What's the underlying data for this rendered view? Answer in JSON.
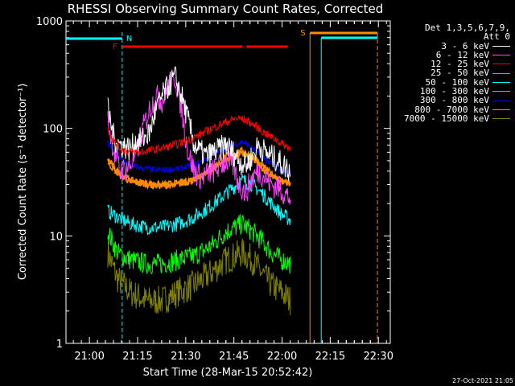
{
  "chart_data": {
    "type": "line",
    "title": "RHESSI Observing Summary Count Rates, Corrected",
    "xlabel": "Start Time (28-Mar-15 20:52:42)",
    "ylabel": "Corrected Count Rate (s⁻¹ detector⁻¹)",
    "x_ticks": [
      "21:00",
      "21:15",
      "21:30",
      "21:45",
      "22:00",
      "22:15",
      "22:30"
    ],
    "x_tick_minutes": [
      7.3,
      22.3,
      37.3,
      52.3,
      67.3,
      82.3,
      97.3
    ],
    "xlim": [
      0,
      101
    ],
    "y_scale": "log",
    "y_ticks": [
      "1",
      "10",
      "100",
      "1000"
    ],
    "y_tick_values": [
      1,
      10,
      100,
      1000
    ],
    "ylim": [
      1,
      1000
    ],
    "legend_header": [
      "Det 1,3,5,6,7,9,",
      "Att 0"
    ],
    "legend_placement": "right",
    "series": [
      {
        "name": "3 - 6 keV",
        "color": "#ffffff",
        "x": [
          13,
          15,
          17,
          20,
          22,
          24,
          26,
          28,
          30,
          32,
          34,
          36,
          38,
          40,
          42,
          44,
          46,
          48,
          50,
          52,
          54,
          56,
          58,
          60,
          62,
          64,
          66,
          68,
          70
        ],
        "y": [
          150,
          80,
          70,
          65,
          75,
          80,
          90,
          150,
          200,
          250,
          300,
          200,
          120,
          70,
          60,
          55,
          60,
          65,
          70,
          60,
          50,
          45,
          55,
          70,
          60,
          55,
          50,
          45,
          40
        ]
      },
      {
        "name": "6 - 12 keV",
        "color": "#ff40ff",
        "x": [
          13,
          15,
          17,
          20,
          22,
          24,
          26,
          28,
          30,
          32,
          34,
          36,
          38,
          40,
          42,
          44,
          46,
          48,
          50,
          52,
          54,
          56,
          58,
          60,
          62,
          64,
          66,
          68,
          70
        ],
        "y": [
          120,
          60,
          40,
          45,
          60,
          100,
          150,
          200,
          180,
          250,
          300,
          150,
          60,
          40,
          35,
          38,
          40,
          45,
          50,
          45,
          30,
          25,
          35,
          40,
          35,
          30,
          28,
          25,
          22
        ]
      },
      {
        "name": "12 - 25 keV",
        "color": "#ff0000",
        "x": [
          13,
          15,
          17,
          20,
          23,
          26,
          29,
          32,
          35,
          38,
          41,
          44,
          47,
          50,
          53,
          56,
          59,
          62,
          65,
          68,
          70
        ],
        "y": [
          100,
          75,
          65,
          60,
          60,
          62,
          65,
          68,
          72,
          78,
          85,
          95,
          105,
          115,
          125,
          120,
          105,
          90,
          80,
          70,
          65
        ]
      },
      {
        "name": "25 - 50 keV",
        "color": "#00ff00",
        "x": [
          13,
          16,
          20,
          25,
          30,
          35,
          40,
          45,
          50,
          55,
          58,
          61,
          64,
          67,
          70
        ],
        "y": [
          11,
          7,
          6,
          5.5,
          5.5,
          6,
          6.5,
          8,
          11,
          13,
          11,
          9,
          7,
          6,
          5.5
        ]
      },
      {
        "name": "50 - 100 keV",
        "color": "#00ffff",
        "x": [
          13,
          16,
          20,
          25,
          30,
          35,
          40,
          45,
          50,
          55,
          58,
          61,
          64,
          67,
          70
        ],
        "y": [
          17,
          15,
          13,
          12,
          12,
          13,
          15,
          19,
          25,
          33,
          30,
          25,
          20,
          16,
          14
        ]
      },
      {
        "name": "100 - 300 keV",
        "color": "#ff8c00",
        "x": [
          13,
          16,
          20,
          25,
          30,
          35,
          40,
          45,
          50,
          55,
          58,
          61,
          64,
          67,
          70
        ],
        "y": [
          52,
          40,
          33,
          31,
          30,
          31,
          34,
          42,
          55,
          62,
          55,
          45,
          38,
          33,
          31
        ]
      },
      {
        "name": "300 - 800 keV",
        "color": "#0000ff",
        "x": [
          13,
          16,
          20,
          25,
          30,
          35,
          40,
          45,
          50,
          55,
          58,
          61,
          64,
          67,
          70
        ],
        "y": [
          72,
          55,
          45,
          42,
          41,
          42,
          46,
          55,
          68,
          75,
          65,
          55,
          47,
          41,
          38
        ]
      },
      {
        "name": "800 - 7000 keV",
        "color": "#ff8c00",
        "x": [
          13,
          16,
          20,
          25,
          30,
          35,
          40,
          45,
          50,
          55,
          58,
          61,
          64,
          67,
          70
        ],
        "y": [
          48,
          38,
          32,
          30,
          29,
          30,
          33,
          40,
          52,
          58,
          52,
          43,
          36,
          32,
          30
        ]
      },
      {
        "name": "7000 - 15000 keV",
        "color": "#808000",
        "x": [
          13,
          16,
          20,
          25,
          30,
          35,
          40,
          45,
          50,
          55,
          58,
          61,
          64,
          67,
          70
        ],
        "y": [
          7,
          4,
          3,
          2.5,
          2.5,
          3,
          3.5,
          4.5,
          6,
          7,
          6,
          4.5,
          3.5,
          3,
          2.5
        ]
      }
    ],
    "annotations": [
      {
        "label": "N",
        "color": "#00ffff",
        "x": 17.5,
        "x_end": 17.5
      },
      {
        "label": "F",
        "color": "#ff0000",
        "x": 17.5,
        "x_end": 69
      },
      {
        "label": "S",
        "color": "#ff8c00",
        "x": 76,
        "x_end": 97
      }
    ]
  },
  "footer_date": "27-Oct-2021 21:05"
}
